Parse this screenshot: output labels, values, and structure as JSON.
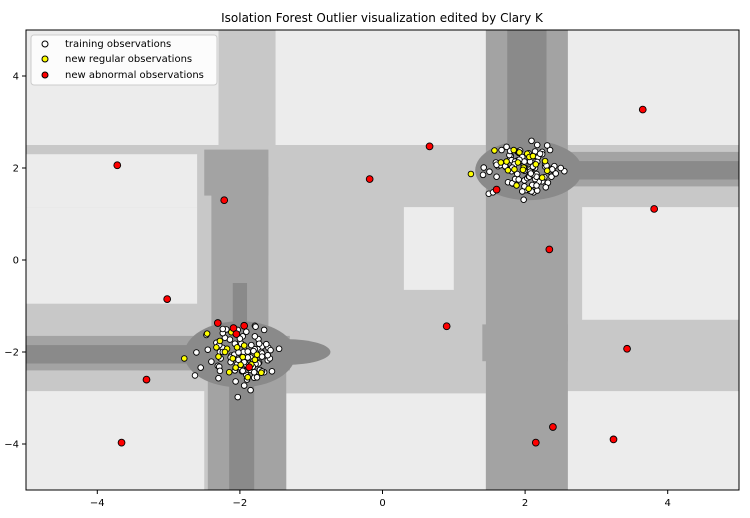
{
  "chart_data": {
    "type": "scatter",
    "title": "Isolation Forest Outlier visualization edited by Clary K",
    "xlabel": "",
    "ylabel": "",
    "xlim": [
      -5,
      5
    ],
    "ylim": [
      -5,
      5
    ],
    "xticks": [
      -4,
      -2,
      0,
      2,
      4
    ],
    "yticks": [
      -4,
      -2,
      0,
      2,
      4
    ],
    "grid": false,
    "legend_position": "top-left",
    "background": {
      "type": "contour",
      "levels": [
        {
          "name": "lightest",
          "color": "#ececec"
        },
        {
          "name": "light",
          "color": "#c8c8c8"
        },
        {
          "name": "medium",
          "color": "#a3a3a3"
        },
        {
          "name": "dark",
          "color": "#8a8a8a"
        }
      ]
    },
    "series": [
      {
        "name": "training observations",
        "color": "#ffffff",
        "edge": "#000000",
        "points": [
          [
            1.62,
            2.04
          ],
          [
            1.79,
            2.2
          ],
          [
            2.06,
            1.51
          ],
          [
            1.89,
            2.36
          ],
          [
            2.12,
            1.47
          ],
          [
            1.8,
            2.26
          ],
          [
            2.07,
            1.97
          ],
          [
            1.59,
            2.12
          ],
          [
            1.91,
            2.33
          ],
          [
            1.98,
            1.31
          ],
          [
            1.96,
            2.24
          ],
          [
            2.24,
            2.35
          ],
          [
            1.78,
            2.28
          ],
          [
            2.12,
            1.84
          ],
          [
            1.97,
            2.12
          ],
          [
            1.5,
            1.92
          ],
          [
            2.36,
            1.98
          ],
          [
            2.14,
            2.0
          ],
          [
            1.73,
            2.02
          ],
          [
            2.01,
            1.52
          ],
          [
            1.65,
            2.06
          ],
          [
            2.13,
            2.17
          ],
          [
            2.41,
            2.04
          ],
          [
            2.16,
            1.87
          ],
          [
            1.89,
            1.87
          ],
          [
            1.99,
            1.73
          ],
          [
            2.27,
            1.8
          ],
          [
            2.39,
            1.93
          ],
          [
            1.76,
            1.69
          ],
          [
            1.81,
            1.93
          ],
          [
            2.17,
            1.51
          ],
          [
            1.79,
            2.37
          ],
          [
            1.72,
            2.04
          ],
          [
            2.35,
            1.92
          ],
          [
            2.09,
            1.49
          ],
          [
            2.32,
            1.68
          ],
          [
            1.99,
            1.94
          ],
          [
            1.89,
            2.16
          ],
          [
            2.18,
            2.23
          ],
          [
            1.99,
            1.6
          ],
          [
            2.07,
            2.14
          ],
          [
            2.24,
            1.71
          ],
          [
            1.6,
            2.07
          ],
          [
            2.15,
            2.14
          ],
          [
            1.93,
            2.38
          ],
          [
            2.07,
            1.88
          ],
          [
            2.19,
            1.7
          ],
          [
            2.03,
            1.78
          ],
          [
            2.37,
            1.81
          ],
          [
            1.81,
            2.17
          ],
          [
            2.09,
            2.59
          ],
          [
            2.35,
            2.39
          ],
          [
            2.35,
            1.95
          ],
          [
            2.05,
            1.82
          ],
          [
            1.97,
            1.96
          ],
          [
            1.6,
            1.81
          ],
          [
            2.1,
            1.63
          ],
          [
            1.93,
            2.15
          ],
          [
            2.17,
            2.5
          ],
          [
            2.06,
            1.81
          ],
          [
            2.28,
            2.03
          ],
          [
            2.55,
            1.93
          ],
          [
            2.0,
            2.07
          ],
          [
            1.67,
            2.39
          ],
          [
            1.49,
            1.44
          ],
          [
            2.38,
            1.97
          ],
          [
            1.98,
            2.05
          ],
          [
            2.14,
            2.36
          ],
          [
            1.55,
            1.47
          ],
          [
            2.28,
            2.1
          ],
          [
            1.83,
            1.66
          ],
          [
            2.3,
            2.05
          ],
          [
            2.14,
            1.76
          ],
          [
            2.16,
            1.62
          ],
          [
            1.86,
            2.14
          ],
          [
            2.43,
            1.88
          ],
          [
            1.96,
            1.49
          ],
          [
            1.42,
            2.01
          ],
          [
            1.85,
            2.08
          ],
          [
            2.24,
            2.3
          ],
          [
            1.74,
            2.46
          ],
          [
            2.21,
            2.31
          ],
          [
            1.82,
            1.67
          ],
          [
            2.11,
            2.02
          ],
          [
            1.82,
            2.01
          ],
          [
            1.99,
            2.14
          ],
          [
            2.16,
            1.81
          ],
          [
            2.31,
            2.49
          ],
          [
            2.07,
            1.92
          ],
          [
            1.86,
            1.76
          ],
          [
            2.17,
            2.13
          ],
          [
            2.5,
            2.0
          ],
          [
            1.91,
            1.75
          ],
          [
            2.29,
            1.58
          ],
          [
            2.1,
            1.86
          ],
          [
            1.41,
            1.85
          ],
          [
            2.05,
            2.32
          ],
          [
            1.92,
            2.18
          ],
          [
            2.11,
            2.03
          ],
          [
            2.08,
            1.88
          ],
          [
            -1.6,
            -1.91
          ],
          [
            -1.91,
            -2.4
          ],
          [
            -1.57,
            -1.96
          ],
          [
            -2.3,
            -2.57
          ],
          [
            -1.69,
            -1.88
          ],
          [
            -1.8,
            -2.56
          ],
          [
            -1.97,
            -2.42
          ],
          [
            -1.79,
            -1.43
          ],
          [
            -2.29,
            -1.77
          ],
          [
            -2.0,
            -2.33
          ],
          [
            -1.75,
            -1.94
          ],
          [
            -1.7,
            -2.0
          ],
          [
            -1.76,
            -2.55
          ],
          [
            -2.14,
            -1.73
          ],
          [
            -2.03,
            -1.52
          ],
          [
            -2.47,
            -1.63
          ],
          [
            -2.06,
            -1.83
          ],
          [
            -2.19,
            -1.51
          ],
          [
            -1.79,
            -1.94
          ],
          [
            -1.85,
            -2.39
          ],
          [
            -1.96,
            -1.66
          ],
          [
            -2.33,
            -1.8
          ],
          [
            -2.21,
            -1.69
          ],
          [
            -1.91,
            -2.5
          ],
          [
            -1.94,
            -2.41
          ],
          [
            -2.02,
            -2.27
          ],
          [
            -2.31,
            -2.3
          ],
          [
            -1.96,
            -2.06
          ],
          [
            -2.45,
            -1.95
          ],
          [
            -1.91,
            -2.28
          ],
          [
            -1.96,
            -2.41
          ],
          [
            -1.63,
            -1.83
          ],
          [
            -1.74,
            -1.72
          ],
          [
            -2.55,
            -2.34
          ],
          [
            -1.89,
            -2.05
          ],
          [
            -1.73,
            -1.82
          ],
          [
            -2.06,
            -2.64
          ],
          [
            -1.93,
            -1.97
          ],
          [
            -2.12,
            -2.08
          ],
          [
            -1.95,
            -2.19
          ],
          [
            -2.08,
            -2.06
          ],
          [
            -1.73,
            -2.23
          ],
          [
            -1.98,
            -2.05
          ],
          [
            -2.04,
            -2.27
          ],
          [
            -1.97,
            -2.15
          ],
          [
            -2.27,
            -2.14
          ],
          [
            -1.92,
            -2.04
          ],
          [
            -2.1,
            -2.14
          ],
          [
            -2.28,
            -2.0
          ],
          [
            -1.85,
            -2.12
          ],
          [
            -1.61,
            -2.18
          ],
          [
            -1.77,
            -2.25
          ],
          [
            -2.29,
            -2.32
          ],
          [
            -2.24,
            -1.91
          ],
          [
            -1.69,
            -2.03
          ],
          [
            -1.69,
            -2.1
          ],
          [
            -1.74,
            -2.25
          ],
          [
            -2.28,
            -2.41
          ],
          [
            -1.9,
            -2.6
          ],
          [
            -1.92,
            -2.16
          ],
          [
            -2.24,
            -1.59
          ],
          [
            -2.61,
            -2.01
          ],
          [
            -1.58,
            -2.14
          ],
          [
            -1.91,
            -1.56
          ],
          [
            -2.03,
            -2.98
          ],
          [
            -1.78,
            -1.45
          ],
          [
            -1.79,
            -1.66
          ],
          [
            -2.4,
            -2.21
          ],
          [
            -1.89,
            -2.12
          ],
          [
            -2.24,
            -2.0
          ],
          [
            -1.66,
            -2.44
          ],
          [
            -1.66,
            -1.52
          ],
          [
            -2.0,
            -1.81
          ],
          [
            -1.94,
            -2.73
          ],
          [
            -1.72,
            -2.39
          ],
          [
            -1.85,
            -2.83
          ],
          [
            -2.07,
            -2.4
          ],
          [
            -2.13,
            -2.12
          ],
          [
            -1.98,
            -1.82
          ],
          [
            -1.84,
            -1.85
          ],
          [
            -1.8,
            -2.44
          ],
          [
            -2.07,
            -1.82
          ],
          [
            -1.55,
            -2.42
          ],
          [
            -1.81,
            -2.19
          ],
          [
            -1.61,
            -2.07
          ],
          [
            -2.29,
            -1.85
          ],
          [
            -1.95,
            -2.0
          ],
          [
            -2.13,
            -2.22
          ],
          [
            -1.78,
            -2.26
          ],
          [
            -1.45,
            -1.93
          ],
          [
            -2.02,
            -2.01
          ],
          [
            -2.02,
            -2.17
          ],
          [
            -1.94,
            -2.22
          ],
          [
            -1.82,
            -2.32
          ],
          [
            -2.0,
            -1.71
          ],
          [
            -2.63,
            -2.51
          ],
          [
            -1.69,
            -2.42
          ],
          [
            -2.24,
            -1.5
          ],
          [
            -1.89,
            -1.99
          ],
          [
            -1.81,
            -1.98
          ]
        ]
      },
      {
        "name": "new regular observations",
        "color": "#ffff00",
        "edge": "#000000",
        "points": [
          [
            1.57,
            2.38
          ],
          [
            1.74,
            2.14
          ],
          [
            1.76,
            1.95
          ],
          [
            1.85,
            1.97
          ],
          [
            1.84,
            2.39
          ],
          [
            1.9,
            2.12
          ],
          [
            1.92,
            2.34
          ],
          [
            2.03,
            2.31
          ],
          [
            2.06,
            2.24
          ],
          [
            2.31,
            1.94
          ],
          [
            2.15,
            2.08
          ],
          [
            2.28,
            2.15
          ],
          [
            1.98,
            2.01
          ],
          [
            1.97,
            1.96
          ],
          [
            1.24,
            1.87
          ],
          [
            2.05,
            1.55
          ],
          [
            1.66,
            2.12
          ],
          [
            2.11,
            2.26
          ],
          [
            1.88,
            1.62
          ],
          [
            2.24,
            1.79
          ],
          [
            -2.78,
            -2.14
          ],
          [
            -2.46,
            -1.6
          ],
          [
            -2.28,
            -1.76
          ],
          [
            -2.18,
            -1.93
          ],
          [
            -2.12,
            -1.57
          ],
          [
            -2.04,
            -1.9
          ],
          [
            -1.94,
            -1.86
          ],
          [
            -2.1,
            -2.14
          ],
          [
            -1.96,
            -2.11
          ],
          [
            -2.21,
            -2.0
          ],
          [
            -1.76,
            -2.06
          ],
          [
            -1.84,
            -2.27
          ],
          [
            -2.06,
            -2.34
          ],
          [
            -1.99,
            -2.28
          ],
          [
            -1.89,
            -2.55
          ],
          [
            -1.7,
            -2.45
          ],
          [
            -2.3,
            -2.1
          ],
          [
            -2.15,
            -2.44
          ],
          [
            -1.79,
            -2.17
          ],
          [
            -2.33,
            -1.9
          ]
        ]
      },
      {
        "name": "new abnormal observations",
        "color": "#ff0000",
        "edge": "#000000",
        "points": [
          [
            3.65,
            3.27
          ],
          [
            -3.72,
            2.06
          ],
          [
            0.66,
            2.47
          ],
          [
            -0.18,
            1.76
          ],
          [
            -2.22,
            1.3
          ],
          [
            1.6,
            1.53
          ],
          [
            3.81,
            1.11
          ],
          [
            2.34,
            0.23
          ],
          [
            -3.02,
            -0.85
          ],
          [
            0.9,
            -1.44
          ],
          [
            3.43,
            -1.93
          ],
          [
            -2.31,
            -1.37
          ],
          [
            -2.09,
            -1.48
          ],
          [
            -1.94,
            -1.43
          ],
          [
            -2.05,
            -1.61
          ],
          [
            -1.87,
            -2.33
          ],
          [
            -3.31,
            -2.6
          ],
          [
            -3.66,
            -3.97
          ],
          [
            2.39,
            -3.63
          ],
          [
            2.15,
            -3.97
          ],
          [
            3.24,
            -3.9
          ]
        ]
      }
    ]
  }
}
